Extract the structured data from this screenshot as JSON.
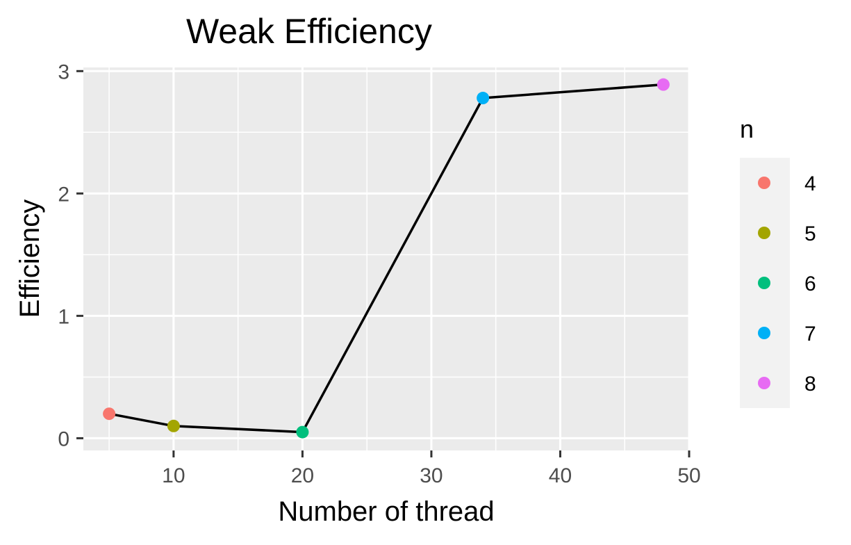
{
  "chart_data": {
    "type": "line",
    "title": "Weak Efficiency",
    "xlabel": "Number of thread",
    "ylabel": "Efficiency",
    "xlim": [
      3,
      50
    ],
    "ylim": [
      -0.1,
      3.03
    ],
    "x_ticks": [
      10,
      20,
      30,
      40,
      50
    ],
    "x_tick_labels": [
      "10",
      "20",
      "30",
      "40",
      "50"
    ],
    "x_minor_ticks": [
      5,
      15,
      25,
      35,
      45
    ],
    "y_ticks": [
      0,
      1,
      2,
      3
    ],
    "y_tick_labels": [
      "0",
      "1",
      "2",
      "3"
    ],
    "y_minor_ticks": [
      0.5,
      1.5,
      2.5
    ],
    "grid": true,
    "line_color": "#000000",
    "panel_background": "#ebebeb",
    "grid_color": "#ffffff",
    "legend": {
      "title": "n",
      "position": "right",
      "background": "#f2f2f2",
      "entries": [
        {
          "label": "4",
          "color": "#F8766D"
        },
        {
          "label": "5",
          "color": "#A3A500"
        },
        {
          "label": "6",
          "color": "#00BF7D"
        },
        {
          "label": "7",
          "color": "#00B0F6"
        },
        {
          "label": "8",
          "color": "#E76BF3"
        }
      ]
    },
    "points": [
      {
        "x": 5,
        "y": 0.2,
        "n": "4",
        "color": "#F8766D"
      },
      {
        "x": 10,
        "y": 0.1,
        "n": "5",
        "color": "#A3A500"
      },
      {
        "x": 20,
        "y": 0.05,
        "n": "6",
        "color": "#00BF7D"
      },
      {
        "x": 34,
        "y": 2.78,
        "n": "7",
        "color": "#00B0F6"
      },
      {
        "x": 48,
        "y": 2.89,
        "n": "8",
        "color": "#E76BF3"
      }
    ]
  }
}
